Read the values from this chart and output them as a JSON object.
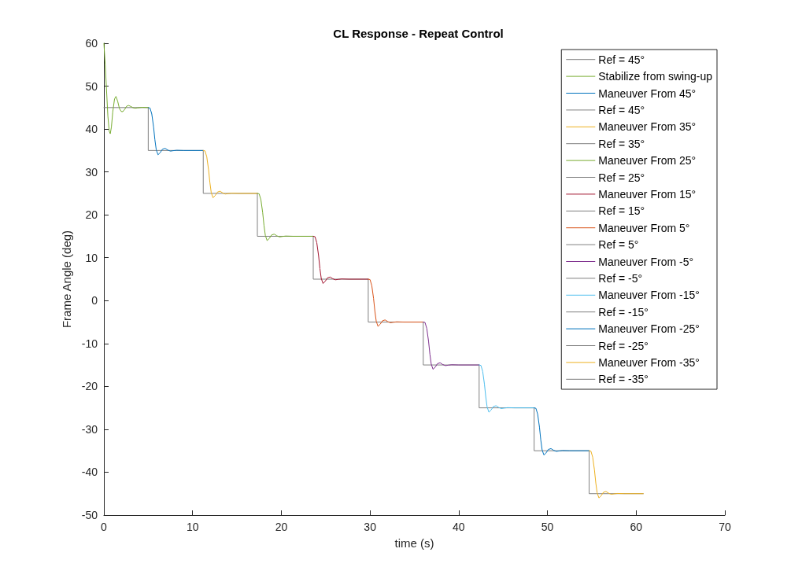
{
  "chart_data": {
    "type": "line",
    "title": "CL Response - Repeat Control",
    "xlabel": "time (s)",
    "ylabel": "Frame Angle (deg)",
    "xlim": [
      0,
      70
    ],
    "xticks": [
      0,
      10,
      20,
      30,
      40,
      50,
      60,
      70
    ],
    "ylim": [
      -50,
      60
    ],
    "yticks": [
      -50,
      -40,
      -30,
      -20,
      -10,
      0,
      10,
      20,
      30,
      40,
      50,
      60
    ],
    "grid": false,
    "legend": "top right",
    "marker": "none",
    "line_style": "solid",
    "series": [
      {
        "name": "Ref = 45°",
        "color": "#808080",
        "x": [
          0,
          5.0
        ],
        "values": [
          45,
          45
        ]
      },
      {
        "name": "Stabilize from swing-up",
        "color": "#77ac30",
        "x": [
          0,
          0.15,
          0.3,
          0.45,
          0.6,
          0.72,
          0.85,
          1.0,
          1.2,
          1.36,
          1.55,
          1.75,
          1.95,
          2.13,
          2.35,
          2.55,
          2.78,
          3.0,
          3.25,
          3.52,
          3.8,
          4.3,
          5.0
        ],
        "values": [
          60,
          55,
          49,
          43,
          39.5,
          38.9,
          40.5,
          44,
          47,
          47.6,
          46.5,
          44.8,
          44.1,
          44.05,
          44.6,
          45.3,
          45.5,
          45.3,
          45.0,
          44.85,
          44.95,
          45.05,
          45
        ]
      },
      {
        "name": "Maneuver From 45°",
        "color": "#0072bd",
        "x": [
          5.0,
          5.2,
          5.4,
          5.6,
          5.75,
          5.9,
          6.1,
          6.35,
          6.6,
          6.9,
          7.2,
          7.5,
          7.8,
          8.2,
          9.0,
          11.2
        ],
        "values": [
          45,
          44.9,
          43.5,
          40.5,
          37.5,
          35.2,
          34,
          34.5,
          35.3,
          35.5,
          35.1,
          34.85,
          34.95,
          35.05,
          35,
          35
        ]
      },
      {
        "name": "Ref = 45°",
        "color": "#808080",
        "x": [
          5.0,
          5.0,
          11.2
        ],
        "values": [
          45,
          35,
          35
        ]
      },
      {
        "name": "Maneuver From 35°",
        "color": "#edb120",
        "x": [
          11.2,
          11.4,
          11.6,
          11.8,
          11.95,
          12.1,
          12.3,
          12.55,
          12.8,
          13.1,
          13.4,
          13.7,
          14.0,
          14.4,
          15.2,
          17.3
        ],
        "values": [
          35,
          34.9,
          33.5,
          30.5,
          27.5,
          25.2,
          24,
          24.5,
          25.3,
          25.5,
          25.1,
          24.85,
          24.95,
          25.05,
          25,
          25
        ]
      },
      {
        "name": "Ref = 35°",
        "color": "#808080",
        "x": [
          11.2,
          11.2,
          17.3
        ],
        "values": [
          35,
          25,
          25
        ]
      },
      {
        "name": "Maneuver From 25°",
        "color": "#77ac30",
        "x": [
          17.3,
          17.5,
          17.7,
          17.9,
          18.05,
          18.2,
          18.4,
          18.65,
          18.9,
          19.2,
          19.5,
          19.8,
          20.1,
          20.5,
          21.3,
          23.6
        ],
        "values": [
          25,
          24.9,
          23.5,
          20.5,
          17.5,
          15.2,
          14,
          14.5,
          15.3,
          15.5,
          15.1,
          14.85,
          14.95,
          15.05,
          15,
          15
        ]
      },
      {
        "name": "Ref = 25°",
        "color": "#808080",
        "x": [
          17.3,
          17.3,
          23.6
        ],
        "values": [
          25,
          15,
          15
        ]
      },
      {
        "name": "Maneuver From 15°",
        "color": "#a2142f",
        "x": [
          23.6,
          23.8,
          24.0,
          24.2,
          24.35,
          24.5,
          24.7,
          24.95,
          25.2,
          25.5,
          25.8,
          26.1,
          26.4,
          26.8,
          27.6,
          29.8
        ],
        "values": [
          15,
          14.9,
          13.5,
          10.5,
          7.5,
          5.2,
          4,
          4.5,
          5.3,
          5.5,
          5.1,
          4.85,
          4.95,
          5.05,
          5,
          5
        ]
      },
      {
        "name": "Ref = 15°",
        "color": "#808080",
        "x": [
          23.6,
          23.6,
          29.8
        ],
        "values": [
          15,
          5,
          5
        ]
      },
      {
        "name": "Maneuver From 5°",
        "color": "#d95319",
        "x": [
          29.8,
          30.0,
          30.2,
          30.4,
          30.55,
          30.7,
          30.9,
          31.15,
          31.4,
          31.7,
          32.0,
          32.3,
          32.6,
          33.0,
          33.8,
          36.0
        ],
        "values": [
          5,
          4.9,
          3.5,
          0.5,
          -2.5,
          -4.8,
          -6,
          -5.5,
          -4.7,
          -4.5,
          -4.9,
          -5.15,
          -5.05,
          -4.95,
          -5,
          -5
        ]
      },
      {
        "name": "Ref = 5°",
        "color": "#808080",
        "x": [
          29.8,
          29.8,
          36.0
        ],
        "values": [
          5,
          -5,
          -5
        ]
      },
      {
        "name": "Maneuver From -5°",
        "color": "#7e2f8e",
        "x": [
          36.0,
          36.2,
          36.4,
          36.6,
          36.75,
          36.9,
          37.1,
          37.35,
          37.6,
          37.9,
          38.2,
          38.5,
          38.8,
          39.2,
          40.0,
          42.3
        ],
        "values": [
          -5,
          -5.1,
          -6.5,
          -9.5,
          -12.5,
          -14.8,
          -16,
          -15.5,
          -14.7,
          -14.5,
          -14.9,
          -15.15,
          -15.05,
          -14.95,
          -15,
          -15
        ]
      },
      {
        "name": "Ref = -5°",
        "color": "#808080",
        "x": [
          36.0,
          36.0,
          42.3
        ],
        "values": [
          -5,
          -15,
          -15
        ]
      },
      {
        "name": "Maneuver From -15°",
        "color": "#4dbeee",
        "x": [
          42.3,
          42.5,
          42.7,
          42.9,
          43.05,
          43.2,
          43.4,
          43.65,
          43.9,
          44.2,
          44.5,
          44.8,
          45.1,
          45.5,
          46.3,
          48.5
        ],
        "values": [
          -15,
          -15.1,
          -16.5,
          -19.5,
          -22.5,
          -24.8,
          -26,
          -25.5,
          -24.7,
          -24.5,
          -24.9,
          -25.15,
          -25.05,
          -24.95,
          -25,
          -25
        ]
      },
      {
        "name": "Ref = -15°",
        "color": "#808080",
        "x": [
          42.3,
          42.3,
          48.5
        ],
        "values": [
          -15,
          -25,
          -25
        ]
      },
      {
        "name": "Maneuver From -25°",
        "color": "#0072bd",
        "x": [
          48.5,
          48.7,
          48.9,
          49.1,
          49.25,
          49.4,
          49.6,
          49.85,
          50.1,
          50.4,
          50.7,
          51.0,
          51.3,
          51.7,
          52.5,
          54.7
        ],
        "values": [
          -25,
          -25.1,
          -26.5,
          -29.5,
          -32.5,
          -34.8,
          -36,
          -35.5,
          -34.7,
          -34.5,
          -34.9,
          -35.15,
          -35.05,
          -34.95,
          -35,
          -35
        ]
      },
      {
        "name": "Ref = -25°",
        "color": "#808080",
        "x": [
          48.5,
          48.5,
          54.7
        ],
        "values": [
          -25,
          -35,
          -35
        ]
      },
      {
        "name": "Maneuver From -35°",
        "color": "#edb120",
        "x": [
          54.7,
          54.9,
          55.1,
          55.3,
          55.45,
          55.6,
          55.8,
          56.05,
          56.3,
          56.6,
          56.9,
          57.2,
          57.5,
          57.9,
          58.7,
          60.8
        ],
        "values": [
          -35,
          -35.1,
          -36.5,
          -39.5,
          -42.5,
          -44.8,
          -46,
          -45.5,
          -44.7,
          -44.5,
          -44.9,
          -45.15,
          -45.05,
          -44.95,
          -45,
          -45
        ]
      },
      {
        "name": "Ref = -35°",
        "color": "#808080",
        "x": [
          54.7,
          54.7,
          60.8
        ],
        "values": [
          -35,
          -45,
          -45
        ]
      }
    ]
  }
}
